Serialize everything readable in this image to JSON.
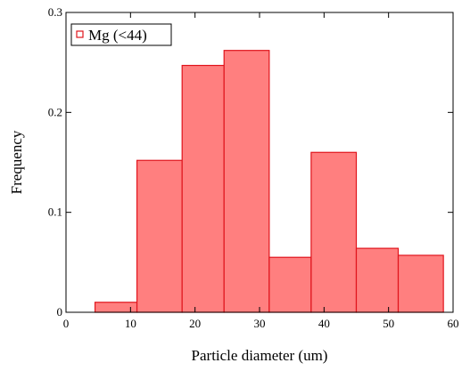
{
  "chart_data": {
    "type": "bar",
    "title": "",
    "xlabel": "Particle diameter (um)",
    "ylabel": "Frequency",
    "xlim": [
      0,
      60
    ],
    "ylim": [
      0,
      0.3
    ],
    "xticks": [
      0,
      10,
      20,
      30,
      40,
      50,
      60
    ],
    "xtick_labels": [
      "0",
      "10",
      "20",
      "30",
      "40",
      "50",
      "60"
    ],
    "yticks": [
      0,
      0.1,
      0.2,
      0.3
    ],
    "ytick_labels": [
      "0",
      "0.1",
      "0.2",
      "0.3"
    ],
    "grid": false,
    "legend": {
      "position": "top-left",
      "entries": [
        "Mg (<44)"
      ]
    },
    "series": [
      {
        "name": "Mg (<44)",
        "color": "#ff7f7f",
        "edge_color": "#e0141c",
        "bins": [
          {
            "x0": 4.5,
            "x1": 11.0,
            "value": 0.01
          },
          {
            "x0": 11.0,
            "x1": 18.0,
            "value": 0.152
          },
          {
            "x0": 18.0,
            "x1": 24.5,
            "value": 0.247
          },
          {
            "x0": 24.5,
            "x1": 31.5,
            "value": 0.262
          },
          {
            "x0": 31.5,
            "x1": 38.0,
            "value": 0.055
          },
          {
            "x0": 38.0,
            "x1": 45.0,
            "value": 0.16
          },
          {
            "x0": 45.0,
            "x1": 51.5,
            "value": 0.064
          },
          {
            "x0": 51.5,
            "x1": 58.5,
            "value": 0.057
          }
        ]
      }
    ]
  }
}
